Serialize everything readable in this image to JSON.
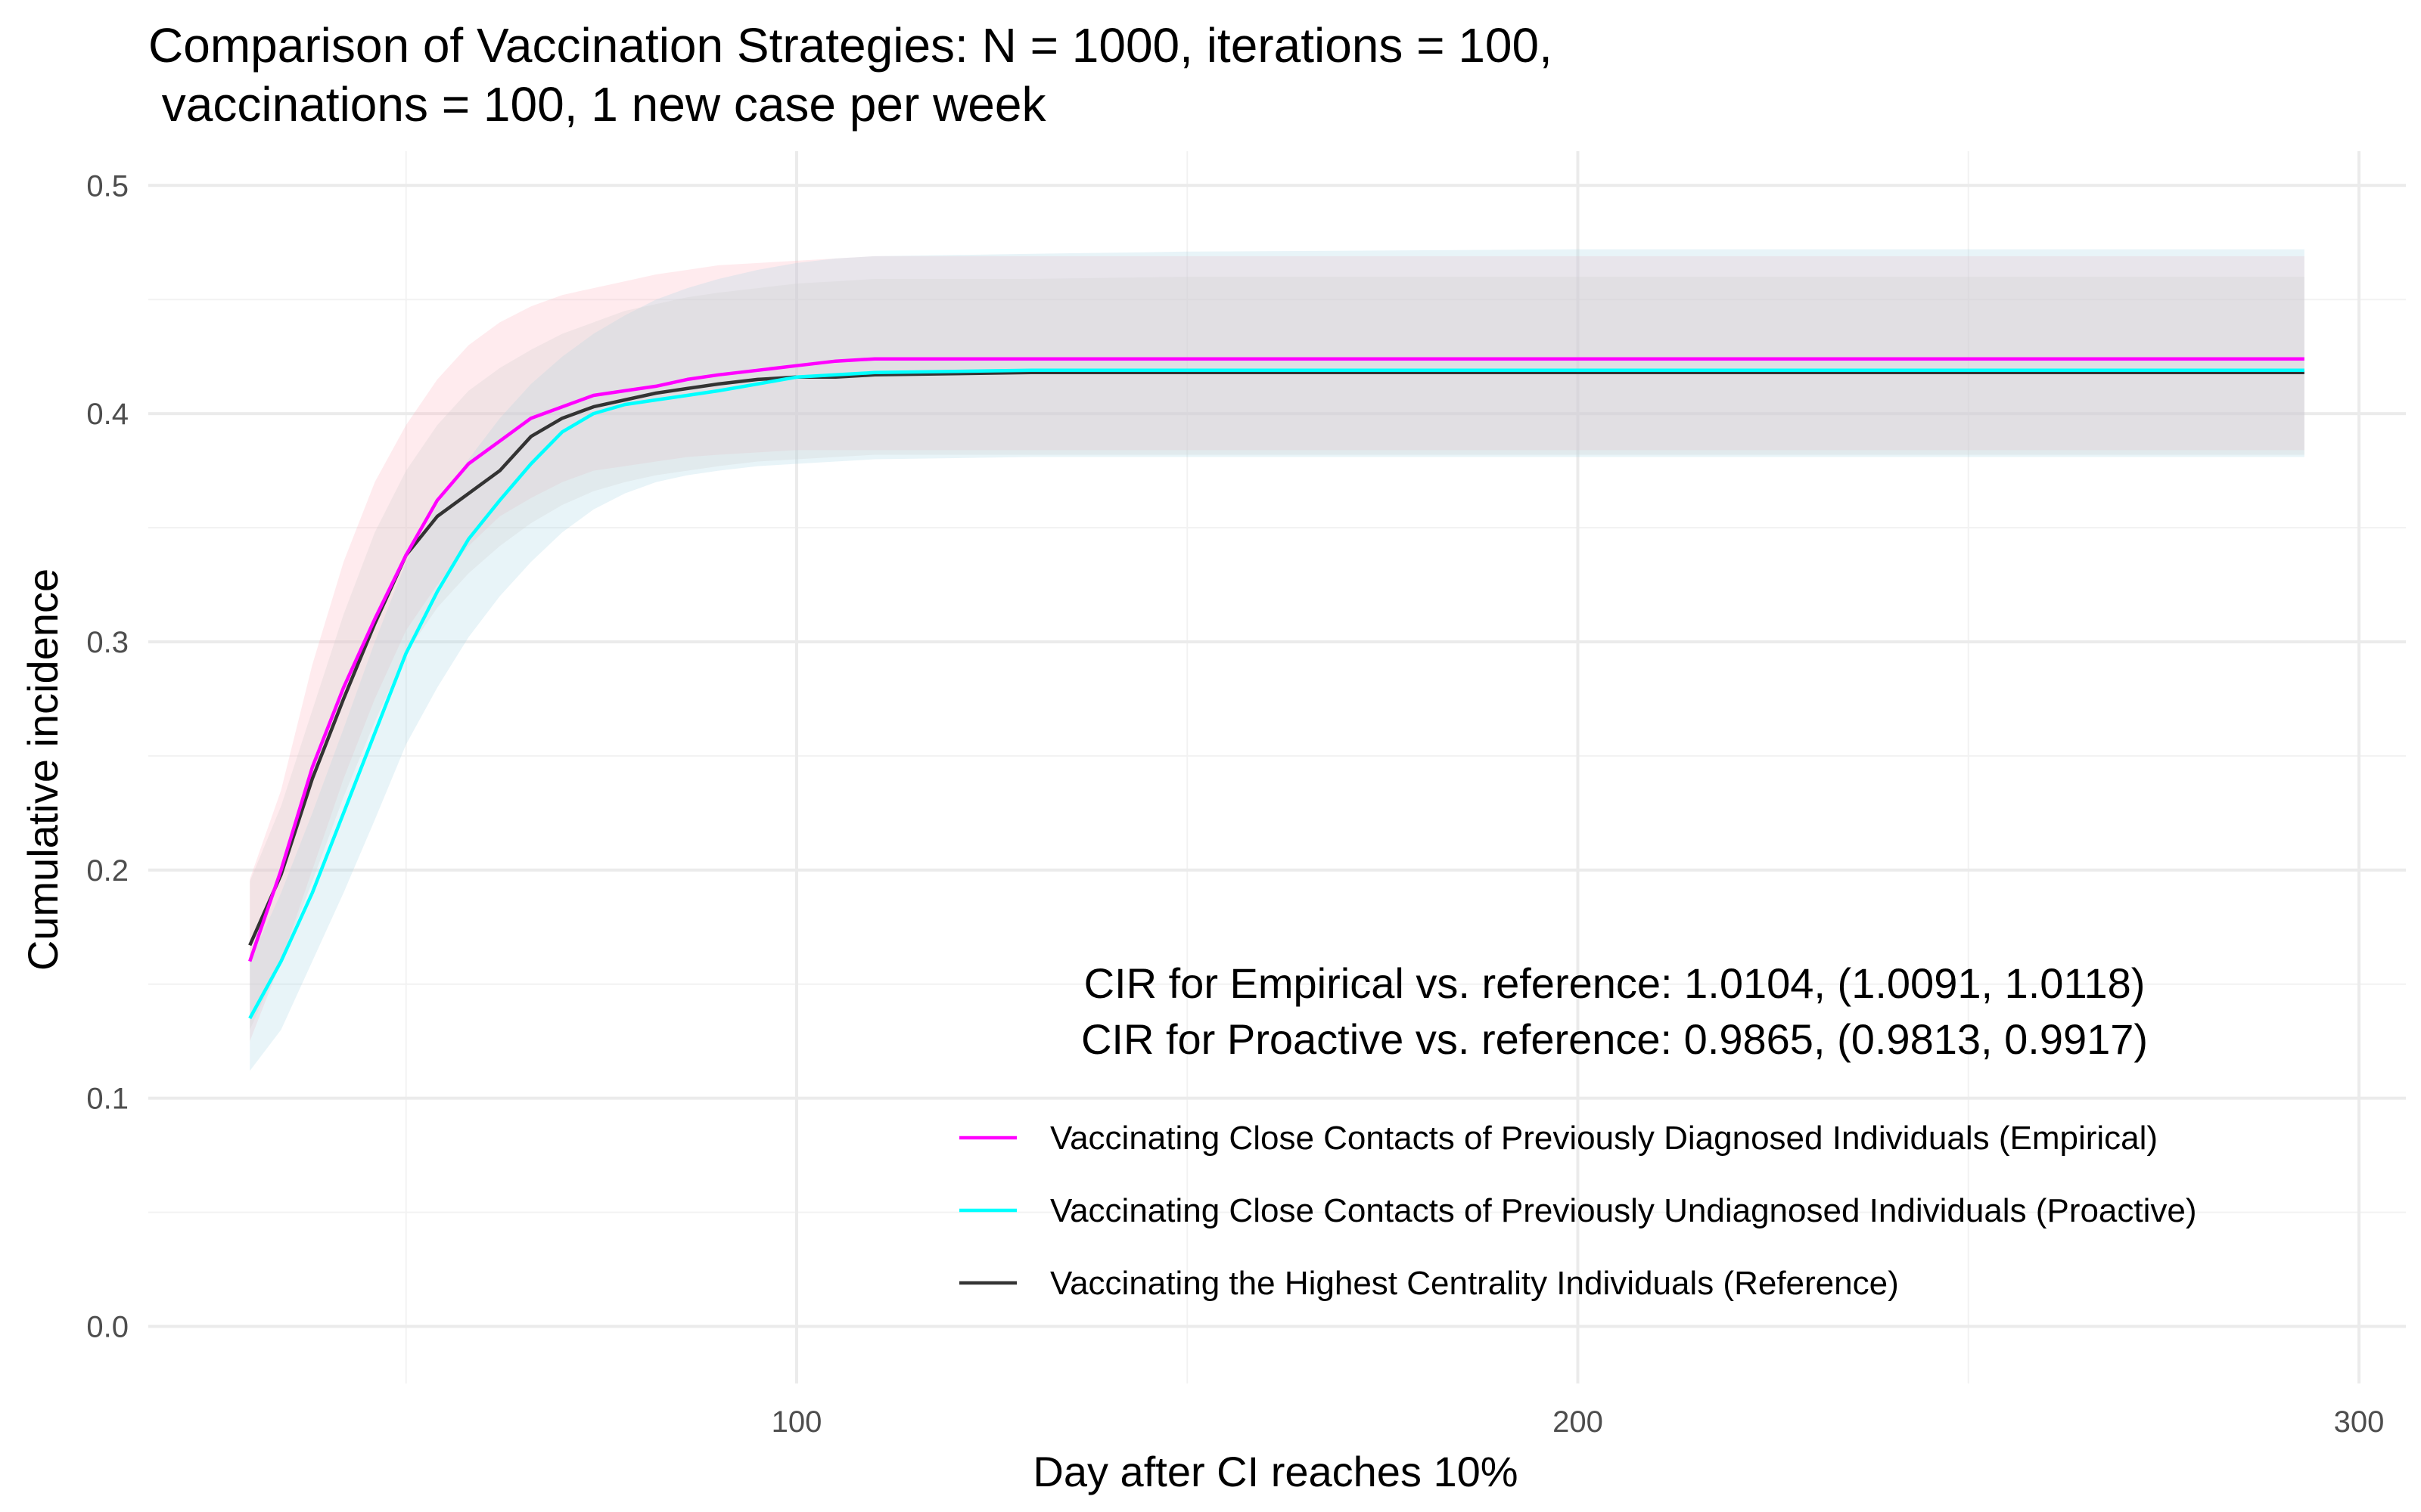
{
  "chart_data": {
    "type": "line",
    "title_lines": [
      "Comparison of Vaccination Strategies: N = 1000, iterations = 100,",
      " vaccinations = 100, 1 new case per week"
    ],
    "xlabel": "Day after CI reaches 10%",
    "ylabel": "Cumulative incidence",
    "xlim": [
      17,
      306
    ],
    "ylim": [
      -0.025,
      0.515
    ],
    "x_ticks": [
      100,
      200,
      300
    ],
    "x_tick_labels": [
      "100",
      "200",
      "300"
    ],
    "y_ticks": [
      0.0,
      0.1,
      0.2,
      0.3,
      0.4,
      0.5
    ],
    "y_tick_labels": [
      "0.0",
      "0.1",
      "0.2",
      "0.3",
      "0.4",
      "0.5"
    ],
    "grid": true,
    "legend_position": "bottom-right",
    "annotations": [
      "CIR for Empirical vs. reference: 1.0104, (1.0091, 1.0118)",
      "CIR for Proactive vs. reference: 0.9865, (0.9813, 0.9917)"
    ],
    "series": [
      {
        "name": "Vaccinating Close Contacts of Previously Diagnosed Individuals (Empirical)",
        "color": "#ff00ff",
        "band_color": "#ffb6c1",
        "x": [
          30,
          34,
          38,
          42,
          46,
          50,
          54,
          58,
          62,
          66,
          70,
          74,
          78,
          82,
          86,
          90,
          95,
          100,
          105,
          110,
          130,
          150,
          200,
          250,
          293
        ],
        "y": [
          0.16,
          0.2,
          0.245,
          0.28,
          0.31,
          0.338,
          0.362,
          0.378,
          0.388,
          0.398,
          0.403,
          0.408,
          0.41,
          0.412,
          0.415,
          0.417,
          0.419,
          0.421,
          0.423,
          0.424,
          0.424,
          0.424,
          0.424,
          0.424,
          0.424
        ],
        "lower": [
          0.125,
          0.16,
          0.2,
          0.24,
          0.275,
          0.305,
          0.325,
          0.342,
          0.355,
          0.363,
          0.37,
          0.375,
          0.377,
          0.379,
          0.381,
          0.382,
          0.383,
          0.384,
          0.384,
          0.384,
          0.384,
          0.384,
          0.384,
          0.384,
          0.384
        ],
        "upper": [
          0.196,
          0.235,
          0.29,
          0.335,
          0.37,
          0.395,
          0.415,
          0.43,
          0.44,
          0.447,
          0.452,
          0.455,
          0.458,
          0.461,
          0.463,
          0.465,
          0.466,
          0.467,
          0.468,
          0.469,
          0.469,
          0.469,
          0.469,
          0.469,
          0.469
        ]
      },
      {
        "name": "Vaccinating Close Contacts of Previously Undiagnosed Individuals (Proactive)",
        "color": "#00ffff",
        "band_color": "#add8e6",
        "x": [
          30,
          34,
          38,
          42,
          46,
          50,
          54,
          58,
          62,
          66,
          70,
          74,
          78,
          82,
          86,
          90,
          95,
          100,
          105,
          110,
          130,
          150,
          200,
          250,
          293
        ],
        "y": [
          0.135,
          0.16,
          0.19,
          0.225,
          0.26,
          0.295,
          0.322,
          0.345,
          0.362,
          0.378,
          0.392,
          0.4,
          0.404,
          0.406,
          0.408,
          0.41,
          0.413,
          0.416,
          0.417,
          0.418,
          0.419,
          0.419,
          0.419,
          0.419,
          0.419
        ],
        "lower": [
          0.112,
          0.13,
          0.16,
          0.19,
          0.222,
          0.255,
          0.28,
          0.302,
          0.32,
          0.335,
          0.348,
          0.358,
          0.365,
          0.37,
          0.373,
          0.375,
          0.377,
          0.378,
          0.379,
          0.38,
          0.381,
          0.381,
          0.381,
          0.381,
          0.381
        ],
        "upper": [
          0.16,
          0.19,
          0.225,
          0.262,
          0.3,
          0.335,
          0.36,
          0.38,
          0.398,
          0.413,
          0.425,
          0.435,
          0.443,
          0.45,
          0.455,
          0.459,
          0.463,
          0.466,
          0.468,
          0.469,
          0.47,
          0.471,
          0.472,
          0.472,
          0.472
        ]
      },
      {
        "name": "Vaccinating the Highest Centrality Individuals (Reference)",
        "color": "#333333",
        "band_color": "#cfcfcf",
        "x": [
          30,
          34,
          38,
          42,
          46,
          50,
          54,
          58,
          62,
          66,
          70,
          74,
          78,
          82,
          86,
          90,
          95,
          100,
          105,
          110,
          130,
          150,
          200,
          250,
          293
        ],
        "y": [
          0.167,
          0.198,
          0.24,
          0.275,
          0.308,
          0.338,
          0.355,
          0.365,
          0.375,
          0.39,
          0.398,
          0.403,
          0.406,
          0.409,
          0.411,
          0.413,
          0.415,
          0.416,
          0.416,
          0.417,
          0.418,
          0.418,
          0.418,
          0.418,
          0.418
        ],
        "lower": [
          0.13,
          0.16,
          0.195,
          0.232,
          0.265,
          0.295,
          0.315,
          0.33,
          0.342,
          0.352,
          0.36,
          0.366,
          0.37,
          0.373,
          0.375,
          0.377,
          0.379,
          0.38,
          0.381,
          0.382,
          0.382,
          0.382,
          0.382,
          0.382,
          0.382
        ],
        "upper": [
          0.195,
          0.228,
          0.27,
          0.312,
          0.348,
          0.375,
          0.395,
          0.41,
          0.42,
          0.428,
          0.435,
          0.44,
          0.445,
          0.448,
          0.451,
          0.453,
          0.455,
          0.457,
          0.458,
          0.459,
          0.459,
          0.46,
          0.46,
          0.46,
          0.46
        ]
      }
    ]
  }
}
